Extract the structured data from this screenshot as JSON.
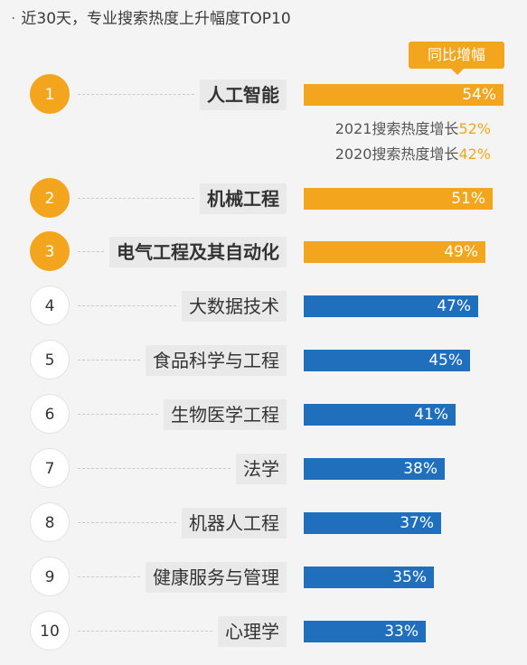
{
  "header": {
    "bullet": "·",
    "title": "近30天，专业搜索热度上升幅度TOP10"
  },
  "legend": {
    "label": "同比增幅"
  },
  "colors": {
    "top3": "#f3a61d",
    "rest": "#1f6fbd"
  },
  "notes": [
    {
      "prefix": "2021搜索热度增长",
      "value": "52%"
    },
    {
      "prefix": "2020搜索热度增长",
      "value": "42%"
    }
  ],
  "chart_data": {
    "type": "bar",
    "orientation": "horizontal",
    "title": "近30天，专业搜索热度上升幅度TOP10",
    "legend": [
      "同比增幅"
    ],
    "xlim": [
      0,
      60
    ],
    "ranks": [
      "1",
      "2",
      "3",
      "4",
      "5",
      "6",
      "7",
      "8",
      "9",
      "10"
    ],
    "categories": [
      "人工智能",
      "机械工程",
      "电气工程及其自动化",
      "大数据技术",
      "食品科学与工程",
      "生物医学工程",
      "法学",
      "机器人工程",
      "健康服务与管理",
      "心理学"
    ],
    "values": [
      54,
      51,
      49,
      47,
      45,
      41,
      38,
      37,
      35,
      33
    ],
    "value_labels": [
      "54%",
      "51%",
      "49%",
      "47%",
      "45%",
      "41%",
      "38%",
      "37%",
      "35%",
      "33%"
    ],
    "highlight_top": 3,
    "annotations": [
      {
        "category": "人工智能",
        "lines": [
          "2021搜索热度增长52%",
          "2020搜索热度增长42%"
        ]
      }
    ]
  }
}
